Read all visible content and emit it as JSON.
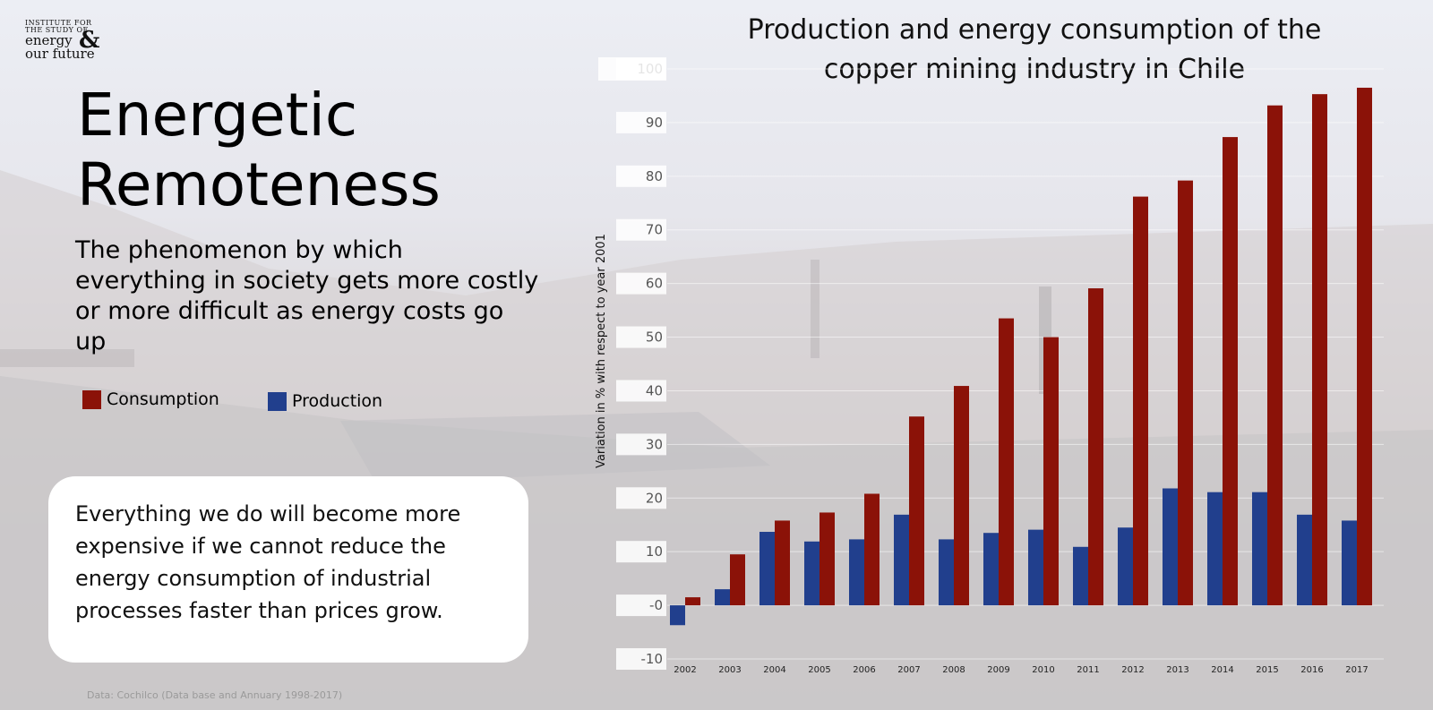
{
  "logo": {
    "line1": "INSTITUTE FOR",
    "line2": "THE STUDY OF",
    "line3": "energy",
    "amp": "&",
    "line4": "our future"
  },
  "headline": {
    "line1": "Energetic",
    "line2": "Remoteness"
  },
  "lead": "The phenomenon by which everything in society gets more costly or more difficult as  energy costs go up",
  "note": "Everything we do will become more expensive if we cannot reduce the energy consumption of industrial processes faster than prices grow.",
  "source": "Data: Cochilco (Data base and Annuary 1998-2017)",
  "colors": {
    "consumption": "#8b1208",
    "production": "#213f8d"
  },
  "chart_data": {
    "type": "bar",
    "title_line1": "Production and energy consumption of the",
    "title_line2": "copper mining industry in Chile",
    "xlabel": "",
    "ylabel": "Variation in % with respect to year 2001",
    "ylim": [
      -10,
      100
    ],
    "yticks": [
      100,
      90,
      80,
      70,
      60,
      50,
      40,
      30,
      20,
      10,
      0,
      -10
    ],
    "ytick_labels": [
      "100",
      "90",
      "80",
      "70",
      "60",
      "50",
      "40",
      "30",
      "20",
      "10",
      "-0",
      "-10"
    ],
    "categories": [
      "2002",
      "2003",
      "2004",
      "2005",
      "2006",
      "2007",
      "2008",
      "2009",
      "2010",
      "2011",
      "2012",
      "2013",
      "2014",
      "2015",
      "2016",
      "2017"
    ],
    "series": [
      {
        "name": "Consumption",
        "values": [
          1.5,
          9.5,
          15.8,
          17.3,
          20.8,
          35.2,
          40.9,
          53.5,
          50.0,
          59.1,
          76.2,
          79.2,
          87.3,
          93.2,
          95.3,
          96.5
        ]
      },
      {
        "name": "Production",
        "values": [
          -3.7,
          3.0,
          13.7,
          11.9,
          12.3,
          16.9,
          12.3,
          13.5,
          14.1,
          10.9,
          14.5,
          21.8,
          21.1,
          21.1,
          16.9,
          15.8
        ]
      }
    ],
    "legend": [
      "Consumption",
      "Production"
    ],
    "legend_placement": "left-panel"
  }
}
